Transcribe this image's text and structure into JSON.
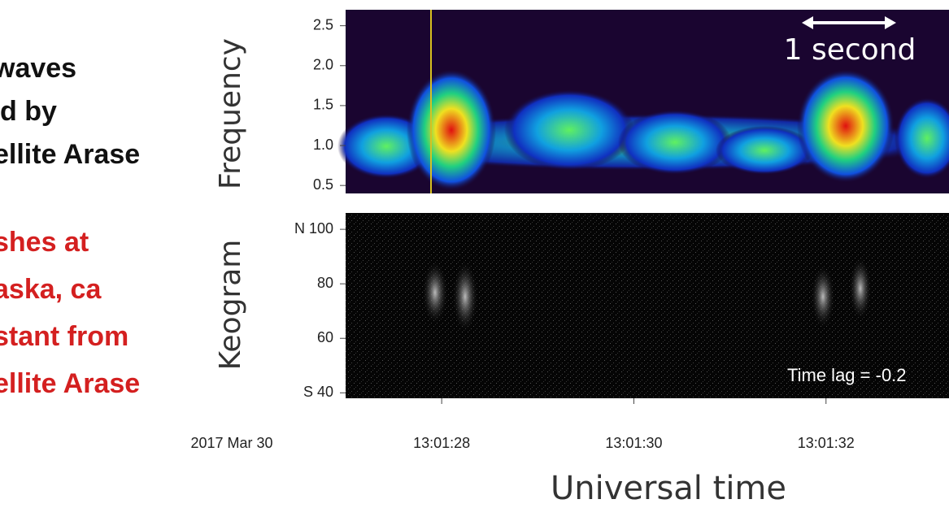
{
  "left_text": {
    "black": [
      "waves",
      "d by",
      "ellite Arase"
    ],
    "red": [
      "shes at",
      "aska, ca",
      "stant from",
      "ellite Arase"
    ]
  },
  "spectrogram": {
    "ylabel": "Frequency",
    "ylim": [
      0.4,
      2.7
    ],
    "yticks": [
      {
        "value": 0.5,
        "label": "0.5"
      },
      {
        "value": 1,
        "label": "1.0"
      },
      {
        "value": 1.5,
        "label": "1.5"
      },
      {
        "value": 2,
        "label": "2.0"
      },
      {
        "value": 2.5,
        "label": "2.5"
      }
    ],
    "annotation": "1 second"
  },
  "keogram": {
    "ylabel": "Keogram",
    "ylim": [
      38,
      106
    ],
    "yticks": [
      {
        "value": 40,
        "label": "S 40"
      },
      60,
      80,
      {
        "value": 100,
        "label": "N 100"
      }
    ],
    "annotation": "Time lag = -0.2"
  },
  "time_axis": {
    "date": "2017 Mar 30",
    "xlim": [
      27,
      33.28
    ],
    "xticks": [
      {
        "value": 28,
        "label": "13:01:28"
      },
      {
        "value": 30,
        "label": "13:01:30"
      },
      {
        "value": 32,
        "label": "13:01:32"
      }
    ],
    "xlabel": "Universal time"
  }
}
